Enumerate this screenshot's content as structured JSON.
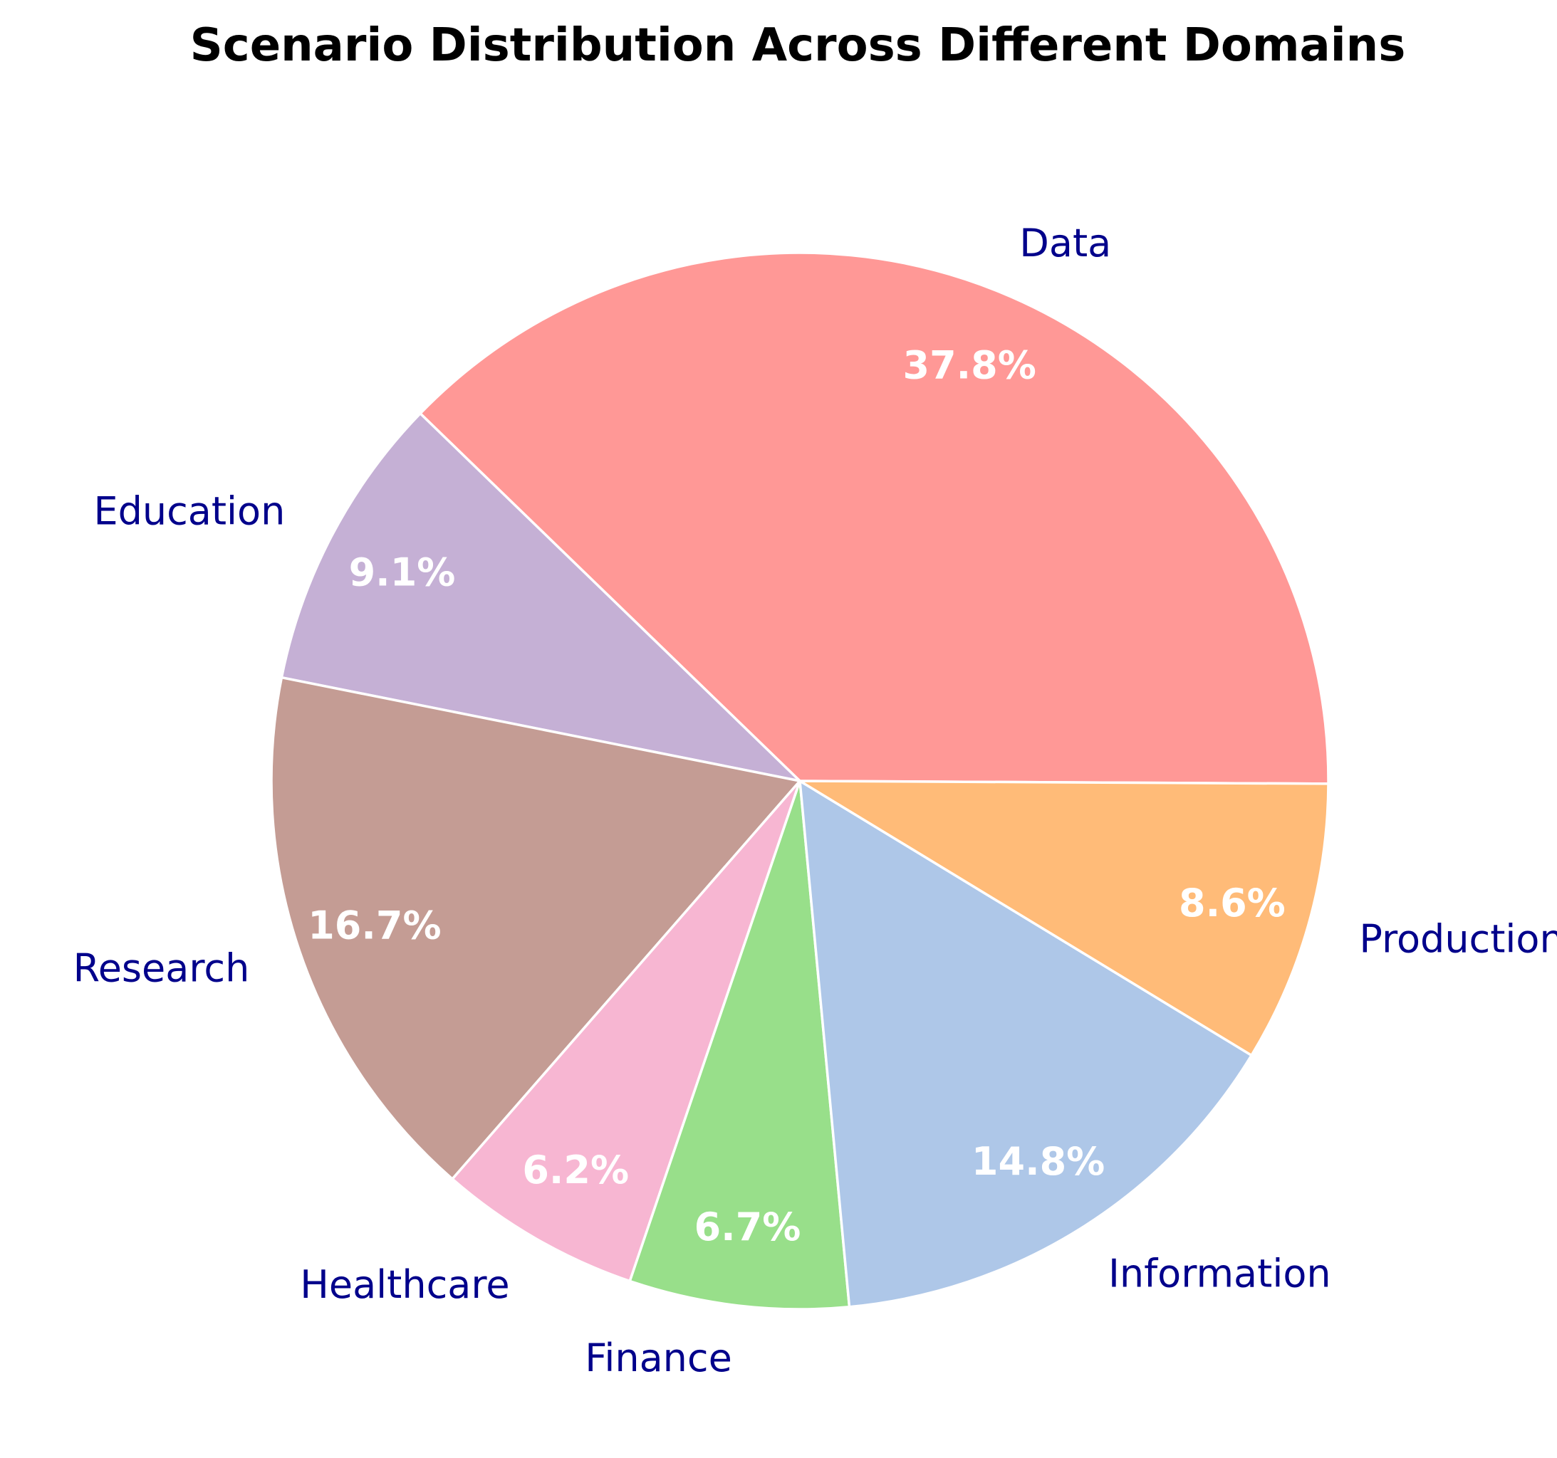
{
  "chart_data": {
    "type": "pie",
    "title": "Scenario Distribution Across Different Domains",
    "categories": [
      "Data",
      "Education",
      "Research",
      "Healthcare",
      "Finance",
      "Information",
      "Production"
    ],
    "values": [
      37.8,
      9.1,
      16.7,
      6.2,
      6.7,
      14.8,
      8.6
    ],
    "value_labels": [
      "37.8%",
      "9.1%",
      "16.7%",
      "6.2%",
      "6.7%",
      "14.8%",
      "8.6%"
    ],
    "colors": [
      "#ff9896",
      "#c5b0d5",
      "#c49c94",
      "#f7b6d2",
      "#98df8a",
      "#aec7e8",
      "#ffbb78"
    ],
    "label_color": "#00008b",
    "value_label_color": "#ffffff",
    "edge_color": "#ffffff",
    "direction": "counterclockwise",
    "legend": "none"
  }
}
